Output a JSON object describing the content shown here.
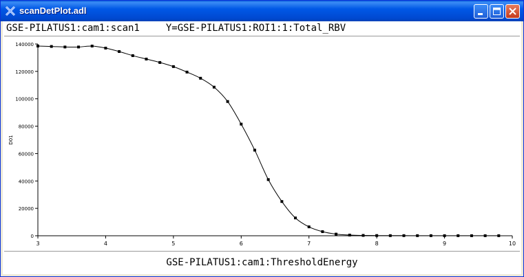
{
  "window": {
    "title": "scanDetPlot.adl",
    "buttons": {
      "minimize": "minimize",
      "maximize": "maximize",
      "close": "close"
    }
  },
  "header": {
    "scan_pv": "GSE-PILATUS1:cam1:scan1",
    "y_pv": "Y=GSE-PILATUS1:ROI1:1:Total_RBV"
  },
  "chart_data": {
    "type": "line",
    "xlabel": "GSE-PILATUS1:cam1:ThresholdEnergy",
    "ylabel": "D01",
    "xlim": [
      3,
      10
    ],
    "ylim": [
      0,
      140000
    ],
    "x_ticks": [
      3,
      4,
      5,
      6,
      7,
      8,
      9,
      10
    ],
    "y_ticks": [
      0,
      20000,
      40000,
      60000,
      80000,
      100000,
      120000,
      140000
    ],
    "grid": false,
    "series": [
      {
        "marker": "square",
        "color": "#000000",
        "x": [
          3.0,
          3.2,
          3.4,
          3.6,
          3.8,
          4.0,
          4.2,
          4.4,
          4.6,
          4.8,
          5.0,
          5.2,
          5.4,
          5.6,
          5.8,
          6.0,
          6.2,
          6.4,
          6.6,
          6.8,
          7.0,
          7.2,
          7.4,
          7.6,
          7.8,
          8.0,
          8.2,
          8.4,
          8.6,
          8.8,
          9.0,
          9.2,
          9.4,
          9.6,
          9.8
        ],
        "y": [
          138500,
          138200,
          137800,
          137800,
          138500,
          137000,
          134500,
          131500,
          129000,
          126500,
          123500,
          119500,
          115000,
          108500,
          98000,
          81500,
          62500,
          41000,
          25000,
          13000,
          6500,
          3000,
          1200,
          500,
          250,
          150,
          100,
          100,
          80,
          80,
          60,
          60,
          50,
          50,
          50
        ]
      }
    ]
  }
}
